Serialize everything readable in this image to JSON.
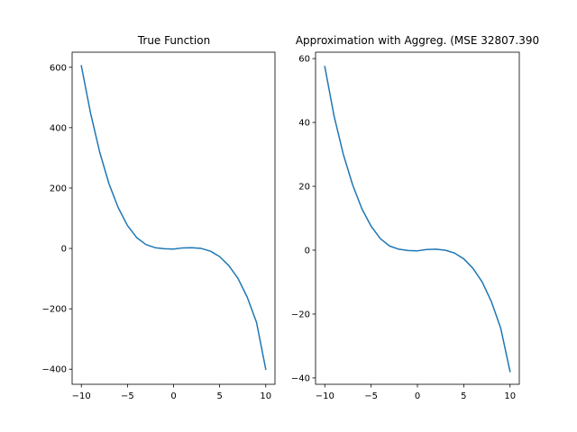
{
  "chart_data": [
    {
      "type": "line",
      "title": "True Function",
      "xlabel": "",
      "ylabel": "",
      "xlim": [
        -11,
        11
      ],
      "ylim": [
        -450,
        650
      ],
      "xticks": [
        -10,
        -5,
        0,
        5,
        10
      ],
      "yticks": [
        -400,
        -200,
        0,
        200,
        400,
        600
      ],
      "grid": false,
      "color": "#1f77b4",
      "x": [
        -10,
        -9,
        -8,
        -7,
        -6,
        -5,
        -4,
        -3,
        -2,
        -1,
        0,
        1,
        2,
        3,
        4,
        5,
        6,
        7,
        8,
        9,
        10
      ],
      "values": [
        605,
        448,
        318,
        214,
        135,
        76,
        36,
        13,
        2.5,
        -1,
        -2,
        1.8,
        2.5,
        0,
        -9,
        -27,
        -57,
        -100,
        -162,
        -245,
        -400
      ]
    },
    {
      "type": "line",
      "title": "Approximation with Aggreg. (MSE 32807.390",
      "xlabel": "",
      "ylabel": "",
      "xlim": [
        -11,
        11
      ],
      "ylim": [
        -42,
        62
      ],
      "xticks": [
        -10,
        -5,
        0,
        5,
        10
      ],
      "yticks": [
        -40,
        -20,
        0,
        20,
        40,
        60
      ],
      "grid": false,
      "color": "#1f77b4",
      "x": [
        -10,
        -9,
        -8,
        -7,
        -6,
        -5,
        -4,
        -3,
        -2,
        -1,
        0,
        1,
        2,
        3,
        4,
        5,
        6,
        7,
        8,
        9,
        10
      ],
      "values": [
        57.5,
        42,
        30,
        20.5,
        13,
        7.5,
        3.6,
        1.3,
        0.3,
        -0.1,
        -0.2,
        0.2,
        0.3,
        0,
        -0.9,
        -2.7,
        -5.7,
        -10,
        -16.2,
        -24.5,
        -38
      ]
    }
  ]
}
